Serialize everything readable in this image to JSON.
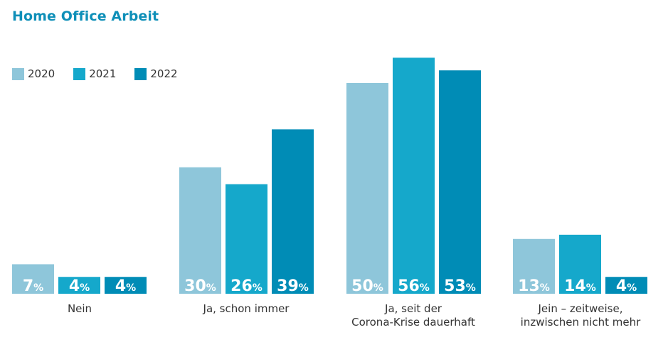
{
  "chart_data": {
    "type": "bar",
    "title": "Home Office Arbeit",
    "categories": [
      "Nein",
      "Ja, schon immer",
      "Ja, seit der\nCorona-Krise dauerhaft",
      "Jein – zeitweise,\ninzwischen nicht mehr"
    ],
    "series": [
      {
        "name": "2020",
        "values": [
          7,
          30,
          50,
          13
        ],
        "color": "#8ec6da"
      },
      {
        "name": "2021",
        "values": [
          4,
          26,
          56,
          14
        ],
        "color": "#15a8cb"
      },
      {
        "name": "2022",
        "values": [
          4,
          39,
          53,
          4
        ],
        "color": "#008cb6"
      }
    ],
    "value_suffix": "%",
    "ylim": [
      0,
      56
    ],
    "legend": "top-left",
    "grid": false
  }
}
